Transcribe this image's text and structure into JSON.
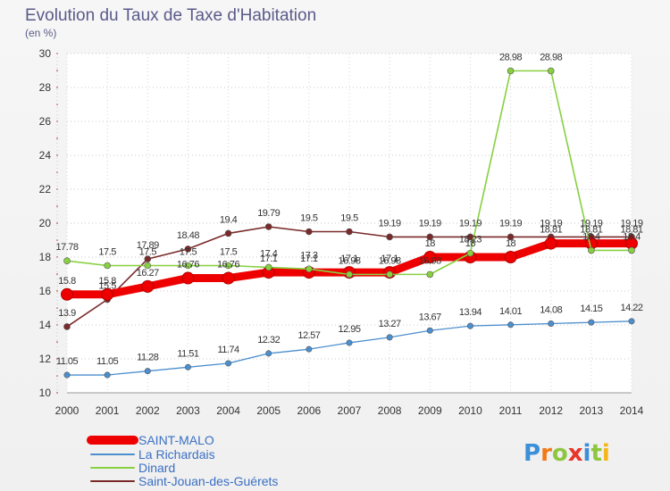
{
  "brand": {
    "logo_text": "Proxiti",
    "letter_colors": [
      "#3a8fd8",
      "#f07a1a",
      "#8dc63f",
      "#e8342a",
      "#3a8fd8",
      "#8dc63f",
      "#f5b51b"
    ]
  },
  "chart_data": {
    "type": "line",
    "title": "Evolution du Taux de Taxe d'Habitation",
    "subtitle": "(en %)",
    "xlabel": "",
    "ylabel": "",
    "x": [
      "2000",
      "2001",
      "2002",
      "2003",
      "2004",
      "2005",
      "2006",
      "2007",
      "2008",
      "2009",
      "2010",
      "2011",
      "2012",
      "2013",
      "2014"
    ],
    "ylim": [
      10,
      30
    ],
    "yticks": [
      "10",
      "12",
      "14",
      "16",
      "18",
      "20",
      "22",
      "24",
      "26",
      "28",
      "30"
    ],
    "grid": "horizontal-dotted",
    "legend_position": "bottom-left",
    "series": [
      {
        "name": "SAINT-MALO",
        "color": "#ee0000",
        "values": [
          15.8,
          15.8,
          16.27,
          16.76,
          16.76,
          17.1,
          17.1,
          17.1,
          17.1,
          18,
          18,
          18,
          18.81,
          18.81,
          18.81
        ],
        "labels": [
          "15.8",
          "15.8",
          "16.27",
          "16.76",
          "16.76",
          "17.1",
          "17.1",
          "17.1",
          "17.1",
          "18",
          "18",
          "18",
          "18.81",
          "18.81",
          "18.81"
        ]
      },
      {
        "name": "La Richardais",
        "color": "#4c8fce",
        "values": [
          11.05,
          11.05,
          11.28,
          11.51,
          11.74,
          12.32,
          12.57,
          12.95,
          13.27,
          13.67,
          13.94,
          14.01,
          14.08,
          14.15,
          14.22
        ],
        "labels": [
          "11.05",
          "11.05",
          "11.28",
          "11.51",
          "11.74",
          "12.32",
          "12.57",
          "12.95",
          "13.27",
          "13.67",
          "13.94",
          "14.01",
          "14.08",
          "14.15",
          "14.22"
        ]
      },
      {
        "name": "Dinard",
        "color": "#88d040",
        "values": [
          17.78,
          17.5,
          17.5,
          17.5,
          17.5,
          17.4,
          17.3,
          16.98,
          16.98,
          16.98,
          18.23,
          28.98,
          28.98,
          18.4,
          18.4
        ],
        "labels": [
          "17.78",
          "17.5",
          "17.5",
          "17.5",
          "17.5",
          "17.4",
          "17.3",
          "16.98",
          "16.98",
          "16.98",
          "18.23",
          "28.98",
          "28.98",
          "18.4",
          "18.4"
        ]
      },
      {
        "name": "Saint-Jouan-des-Guérets",
        "color": "#7a2a2a",
        "values": [
          13.9,
          15.5,
          17.89,
          18.48,
          19.4,
          19.79,
          19.5,
          19.5,
          19.19,
          19.19,
          19.19,
          19.19,
          19.19,
          19.19,
          19.19
        ],
        "labels": [
          "13.9",
          "15.5",
          "17.89",
          "18.48",
          "19.4",
          "19.79",
          "19.5",
          "19.5",
          "19.19",
          "19.19",
          "19.19",
          "19.19",
          "19.19",
          "19.19",
          "19.19"
        ]
      }
    ]
  }
}
